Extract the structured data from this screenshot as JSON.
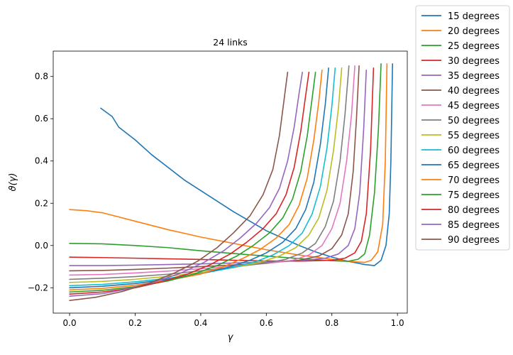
{
  "chart_data": {
    "type": "line",
    "title": "24 links",
    "xlabel": "γ",
    "ylabel": "ϑ(γ)",
    "xlim": [
      -0.05,
      1.03
    ],
    "ylim": [
      -0.32,
      0.92
    ],
    "xticks": [
      {
        "value": 0.0,
        "label": "0.0"
      },
      {
        "value": 0.2,
        "label": "0.2"
      },
      {
        "value": 0.4,
        "label": "0.4"
      },
      {
        "value": 0.6,
        "label": "0.6"
      },
      {
        "value": 0.8,
        "label": "0.8"
      },
      {
        "value": 1.0,
        "label": "1.0"
      }
    ],
    "yticks": [
      {
        "value": -0.2,
        "label": "−0.2"
      },
      {
        "value": 0.0,
        "label": "0.0"
      },
      {
        "value": 0.2,
        "label": "0.2"
      },
      {
        "value": 0.4,
        "label": "0.4"
      },
      {
        "value": 0.6,
        "label": "0.6"
      },
      {
        "value": 0.8,
        "label": "0.8"
      }
    ],
    "grid": false,
    "legend_position": "outside-right",
    "series": [
      {
        "name": "15 degrees",
        "color": "#1f77b4",
        "x": [
          0.095,
          0.13,
          0.15,
          0.2,
          0.25,
          0.3,
          0.35,
          0.4,
          0.45,
          0.5,
          0.55,
          0.6,
          0.65,
          0.7,
          0.75,
          0.8,
          0.85,
          0.9,
          0.93,
          0.95,
          0.965,
          0.975,
          0.98,
          0.985
        ],
        "y": [
          0.65,
          0.61,
          0.56,
          0.5,
          0.43,
          0.37,
          0.31,
          0.26,
          0.21,
          0.16,
          0.115,
          0.07,
          0.035,
          0.0,
          -0.03,
          -0.055,
          -0.075,
          -0.09,
          -0.095,
          -0.07,
          0.0,
          0.15,
          0.4,
          0.86
        ]
      },
      {
        "name": "20 degrees",
        "color": "#ff7f0e",
        "x": [
          0.0,
          0.05,
          0.1,
          0.2,
          0.3,
          0.4,
          0.5,
          0.6,
          0.7,
          0.8,
          0.85,
          0.9,
          0.92,
          0.94,
          0.955,
          0.963,
          0.968
        ],
        "y": [
          0.17,
          0.165,
          0.155,
          0.115,
          0.075,
          0.04,
          0.01,
          -0.02,
          -0.045,
          -0.065,
          -0.075,
          -0.08,
          -0.07,
          -0.03,
          0.1,
          0.4,
          0.86
        ]
      },
      {
        "name": "25 degrees",
        "color": "#2ca02c",
        "x": [
          0.0,
          0.1,
          0.2,
          0.3,
          0.4,
          0.5,
          0.6,
          0.7,
          0.8,
          0.85,
          0.88,
          0.9,
          0.915,
          0.93,
          0.942,
          0.95
        ],
        "y": [
          0.01,
          0.008,
          0.0,
          -0.01,
          -0.025,
          -0.038,
          -0.05,
          -0.062,
          -0.072,
          -0.075,
          -0.065,
          -0.04,
          0.05,
          0.25,
          0.55,
          0.86
        ]
      },
      {
        "name": "30 degrees",
        "color": "#d62728",
        "x": [
          0.0,
          0.1,
          0.2,
          0.3,
          0.4,
          0.5,
          0.6,
          0.7,
          0.8,
          0.84,
          0.87,
          0.89,
          0.905,
          0.918,
          0.927
        ],
        "y": [
          -0.055,
          -0.057,
          -0.06,
          -0.063,
          -0.066,
          -0.07,
          -0.073,
          -0.074,
          -0.07,
          -0.06,
          -0.035,
          0.02,
          0.15,
          0.45,
          0.84
        ]
      },
      {
        "name": "35 degrees",
        "color": "#9467bd",
        "x": [
          0.0,
          0.1,
          0.2,
          0.3,
          0.4,
          0.5,
          0.6,
          0.7,
          0.78,
          0.82,
          0.85,
          0.87,
          0.885,
          0.897,
          0.905
        ],
        "y": [
          -0.095,
          -0.095,
          -0.093,
          -0.09,
          -0.087,
          -0.083,
          -0.078,
          -0.072,
          -0.06,
          -0.04,
          0.0,
          0.08,
          0.25,
          0.55,
          0.83
        ]
      },
      {
        "name": "40 degrees",
        "color": "#8c564b",
        "x": [
          0.0,
          0.1,
          0.2,
          0.3,
          0.4,
          0.5,
          0.6,
          0.7,
          0.76,
          0.8,
          0.83,
          0.85,
          0.865,
          0.875,
          0.883
        ],
        "y": [
          -0.12,
          -0.118,
          -0.113,
          -0.107,
          -0.1,
          -0.092,
          -0.083,
          -0.07,
          -0.05,
          -0.015,
          0.05,
          0.15,
          0.35,
          0.6,
          0.85
        ]
      },
      {
        "name": "45 degrees",
        "color": "#e377c2",
        "x": [
          0.0,
          0.1,
          0.2,
          0.3,
          0.4,
          0.5,
          0.6,
          0.68,
          0.73,
          0.77,
          0.8,
          0.825,
          0.845,
          0.86,
          0.87
        ],
        "y": [
          -0.14,
          -0.137,
          -0.13,
          -0.121,
          -0.11,
          -0.097,
          -0.085,
          -0.07,
          -0.045,
          0.0,
          0.08,
          0.2,
          0.4,
          0.62,
          0.85
        ]
      },
      {
        "name": "50 degrees",
        "color": "#7f7f7f",
        "x": [
          0.0,
          0.1,
          0.2,
          0.3,
          0.4,
          0.5,
          0.6,
          0.66,
          0.71,
          0.75,
          0.78,
          0.805,
          0.825,
          0.84,
          0.852
        ],
        "y": [
          -0.16,
          -0.155,
          -0.147,
          -0.136,
          -0.12,
          -0.102,
          -0.083,
          -0.065,
          -0.035,
          0.01,
          0.09,
          0.21,
          0.4,
          0.62,
          0.85
        ]
      },
      {
        "name": "55 degrees",
        "color": "#bcbd22",
        "x": [
          0.0,
          0.1,
          0.2,
          0.3,
          0.4,
          0.5,
          0.58,
          0.64,
          0.69,
          0.73,
          0.76,
          0.785,
          0.805,
          0.82,
          0.83
        ],
        "y": [
          -0.175,
          -0.17,
          -0.16,
          -0.146,
          -0.128,
          -0.105,
          -0.08,
          -0.05,
          -0.01,
          0.05,
          0.13,
          0.26,
          0.45,
          0.65,
          0.84
        ]
      },
      {
        "name": "60 degrees",
        "color": "#17becf",
        "x": [
          0.0,
          0.1,
          0.2,
          0.3,
          0.4,
          0.5,
          0.57,
          0.62,
          0.67,
          0.71,
          0.74,
          0.765,
          0.785,
          0.8,
          0.81
        ],
        "y": [
          -0.19,
          -0.184,
          -0.172,
          -0.155,
          -0.133,
          -0.104,
          -0.075,
          -0.045,
          0.0,
          0.06,
          0.15,
          0.28,
          0.46,
          0.66,
          0.84
        ]
      },
      {
        "name": "65 degrees",
        "color": "#1f77b4",
        "x": [
          0.0,
          0.1,
          0.2,
          0.3,
          0.4,
          0.48,
          0.55,
          0.6,
          0.65,
          0.69,
          0.72,
          0.745,
          0.765,
          0.78,
          0.79
        ],
        "y": [
          -0.2,
          -0.193,
          -0.18,
          -0.16,
          -0.134,
          -0.105,
          -0.07,
          -0.035,
          0.015,
          0.08,
          0.17,
          0.3,
          0.48,
          0.67,
          0.84
        ]
      },
      {
        "name": "70 degrees",
        "color": "#ff7f0e",
        "x": [
          0.0,
          0.1,
          0.2,
          0.3,
          0.4,
          0.47,
          0.53,
          0.58,
          0.63,
          0.67,
          0.7,
          0.725,
          0.745,
          0.76,
          0.77
        ],
        "y": [
          -0.21,
          -0.203,
          -0.188,
          -0.165,
          -0.135,
          -0.1,
          -0.06,
          -0.02,
          0.035,
          0.1,
          0.19,
          0.32,
          0.5,
          0.68,
          0.83
        ]
      },
      {
        "name": "75 degrees",
        "color": "#2ca02c",
        "x": [
          0.0,
          0.1,
          0.2,
          0.3,
          0.38,
          0.45,
          0.51,
          0.56,
          0.61,
          0.65,
          0.68,
          0.705,
          0.725,
          0.74,
          0.75
        ],
        "y": [
          -0.22,
          -0.212,
          -0.195,
          -0.168,
          -0.135,
          -0.095,
          -0.05,
          0.0,
          0.06,
          0.13,
          0.22,
          0.35,
          0.52,
          0.7,
          0.82
        ]
      },
      {
        "name": "80 degrees",
        "color": "#d62728",
        "x": [
          0.0,
          0.1,
          0.2,
          0.28,
          0.36,
          0.43,
          0.49,
          0.54,
          0.59,
          0.63,
          0.66,
          0.685,
          0.705,
          0.72,
          0.73
        ],
        "y": [
          -0.23,
          -0.22,
          -0.2,
          -0.172,
          -0.135,
          -0.09,
          -0.04,
          0.015,
          0.08,
          0.15,
          0.24,
          0.37,
          0.54,
          0.71,
          0.82
        ]
      },
      {
        "name": "85 degrees",
        "color": "#9467bd",
        "x": [
          0.0,
          0.1,
          0.18,
          0.26,
          0.34,
          0.41,
          0.47,
          0.52,
          0.57,
          0.61,
          0.64,
          0.665,
          0.685,
          0.7,
          0.71
        ],
        "y": [
          -0.24,
          -0.228,
          -0.205,
          -0.172,
          -0.13,
          -0.08,
          -0.025,
          0.035,
          0.105,
          0.18,
          0.27,
          0.4,
          0.56,
          0.72,
          0.82
        ]
      },
      {
        "name": "90 degrees",
        "color": "#8c564b",
        "x": [
          0.0,
          0.08,
          0.16,
          0.24,
          0.32,
          0.39,
          0.45,
          0.5,
          0.55,
          0.59,
          0.62,
          0.64,
          0.655,
          0.665
        ],
        "y": [
          -0.26,
          -0.245,
          -0.218,
          -0.18,
          -0.13,
          -0.075,
          -0.01,
          0.06,
          0.14,
          0.24,
          0.36,
          0.52,
          0.7,
          0.82
        ]
      }
    ]
  }
}
